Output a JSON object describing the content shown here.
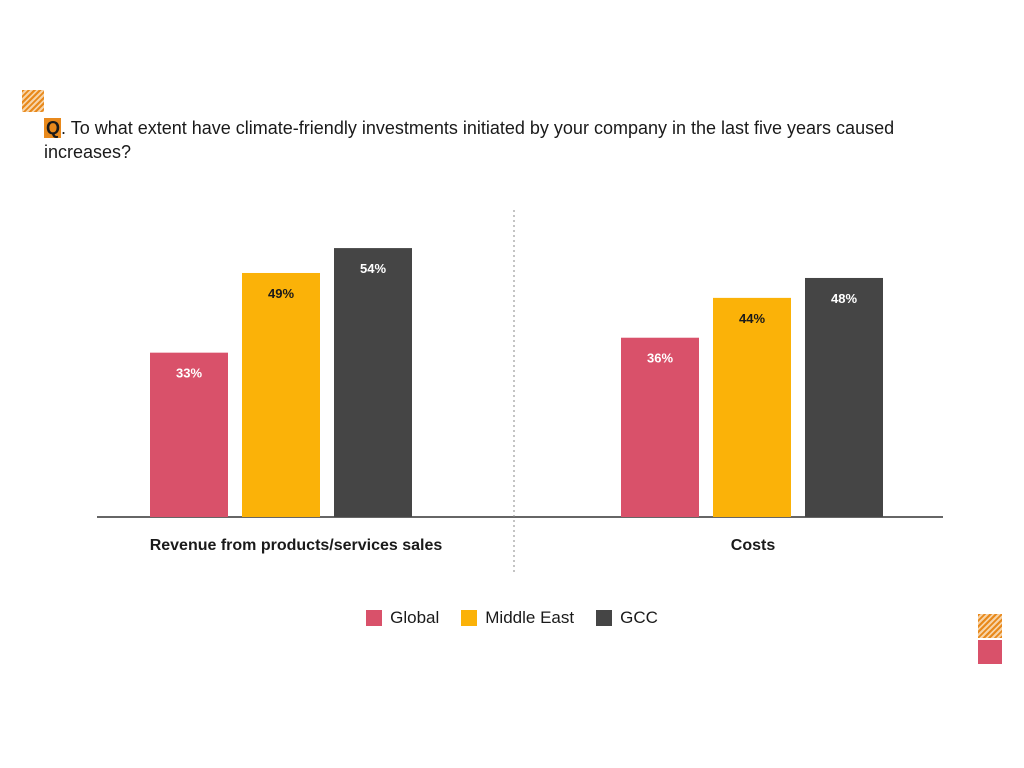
{
  "question": {
    "marker": "Q",
    "text": ". To what extent have climate-friendly investments initiated by your company in the last five years caused increases?"
  },
  "colors": {
    "Global": "#d9516a",
    "Middle East": "#fbb208",
    "GCC": "#454545",
    "accent_orange": "#e8891c",
    "axis": "#333333"
  },
  "chart_data": {
    "type": "bar",
    "title": "",
    "xlabel": "",
    "ylabel": "",
    "ylim": [
      0,
      60
    ],
    "grid": false,
    "legend_position": "bottom-center",
    "categories": [
      "Revenue from products/services sales",
      "Costs"
    ],
    "series": [
      {
        "name": "Global",
        "values": [
          33,
          36
        ],
        "labels": [
          "33%",
          "36%"
        ]
      },
      {
        "name": "Middle East",
        "values": [
          49,
          44
        ],
        "labels": [
          "49%",
          "44%"
        ]
      },
      {
        "name": "GCC",
        "values": [
          54,
          48
        ],
        "labels": [
          "54%",
          "48%"
        ]
      }
    ]
  }
}
